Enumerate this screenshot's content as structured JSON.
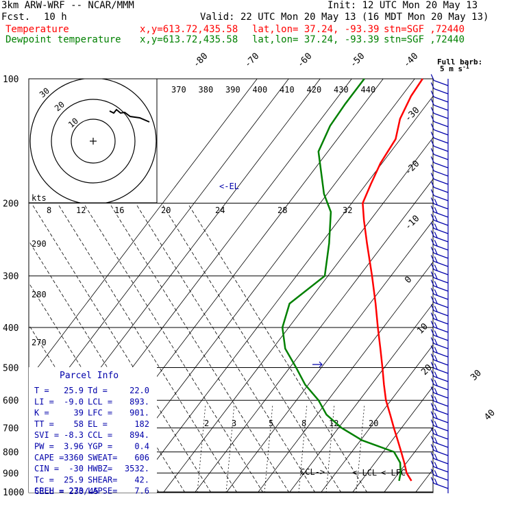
{
  "header": {
    "model": "3km ARW-WRF -- NCAR/MMM",
    "fcst_label": "Fcst.",
    "fcst_value": "10 h",
    "init": "Init: 12 UTC Mon 20 May 13",
    "valid": "Valid: 22 UTC Mon 20 May 13 (16 MDT Mon 20 May 13)",
    "temperature_label": "Temperature",
    "dewpoint_label": "Dewpoint temperature",
    "xy": "x,y=613.72,435.58",
    "latlon": "lat,lon= 37.24, -93.39",
    "station": "stn=SGF ,72440"
  },
  "colors": {
    "temperature": "#ff0000",
    "dewpoint": "#008000",
    "wind_barbs": "#0000aa",
    "text": "#000000"
  },
  "chart_data": {
    "type": "line",
    "subtype": "skew-T log-P sounding",
    "pressure_axis": {
      "scale": "log",
      "range": [
        1000,
        100
      ],
      "tick_labels": [
        "100",
        "200",
        "300",
        "400",
        "500",
        "600",
        "700",
        "800",
        "900",
        "1000"
      ]
    },
    "temperature_isotherm_labels": [
      "-80",
      "-70",
      "-60",
      "-50",
      "-40",
      "-30",
      "-20",
      "-10",
      "0",
      "10",
      "20",
      "30",
      "40"
    ],
    "theta_e_labels": [
      "370",
      "380",
      "390",
      "400",
      "410",
      "420",
      "430",
      "440"
    ],
    "theta_labels": [
      "290",
      "280",
      "270"
    ],
    "mixing_ratio_labels": [
      "2",
      "3",
      "5",
      "8",
      "12",
      "20"
    ],
    "series": [
      {
        "name": "Temperature",
        "color": "#ff0000",
        "points": [
          {
            "p": 940,
            "t": 25.9
          },
          {
            "p": 900,
            "t": 22.5
          },
          {
            "p": 850,
            "t": 19.3
          },
          {
            "p": 800,
            "t": 15.7
          },
          {
            "p": 750,
            "t": 11.8
          },
          {
            "p": 700,
            "t": 7.6
          },
          {
            "p": 650,
            "t": 3.2
          },
          {
            "p": 600,
            "t": -1.6
          },
          {
            "p": 550,
            "t": -6.0
          },
          {
            "p": 500,
            "t": -10.6
          },
          {
            "p": 450,
            "t": -15.8
          },
          {
            "p": 400,
            "t": -21.7
          },
          {
            "p": 350,
            "t": -28.2
          },
          {
            "p": 300,
            "t": -36.0
          },
          {
            "p": 250,
            "t": -45.5
          },
          {
            "p": 220,
            "t": -52.0
          },
          {
            "p": 200,
            "t": -56.5
          },
          {
            "p": 180,
            "t": -58.5
          },
          {
            "p": 160,
            "t": -60.5
          },
          {
            "p": 140,
            "t": -61.5
          },
          {
            "p": 125,
            "t": -65.0
          },
          {
            "p": 110,
            "t": -67.0
          },
          {
            "p": 100,
            "t": -67.5
          }
        ]
      },
      {
        "name": "Dewpoint temperature",
        "color": "#008000",
        "points": [
          {
            "p": 940,
            "t": 22.0
          },
          {
            "p": 900,
            "t": 20.6
          },
          {
            "p": 850,
            "t": 18.0
          },
          {
            "p": 800,
            "t": 13.4
          },
          {
            "p": 750,
            "t": 0.5
          },
          {
            "p": 700,
            "t": -9.0
          },
          {
            "p": 650,
            "t": -17.0
          },
          {
            "p": 600,
            "t": -23.0
          },
          {
            "p": 550,
            "t": -31.0
          },
          {
            "p": 500,
            "t": -38.0
          },
          {
            "p": 450,
            "t": -46.0
          },
          {
            "p": 400,
            "t": -52.0
          },
          {
            "p": 350,
            "t": -55.5
          },
          {
            "p": 300,
            "t": -51.0
          },
          {
            "p": 250,
            "t": -57.5
          },
          {
            "p": 210,
            "t": -64.5
          },
          {
            "p": 190,
            "t": -71.0
          },
          {
            "p": 150,
            "t": -83.0
          },
          {
            "p": 130,
            "t": -85.5
          },
          {
            "p": 115,
            "t": -86.0
          },
          {
            "p": 100,
            "t": -86.0
          }
        ]
      }
    ],
    "annotations": [
      {
        "label": "EL",
        "p": 182
      },
      {
        "label": "LCL",
        "p": 893
      },
      {
        "label": "LFC",
        "p": 901
      },
      {
        "label": "CCL",
        "p": 894
      }
    ]
  },
  "hodograph": {
    "units_label": "kts",
    "speed_labels": [
      "8",
      "12",
      "16",
      "20",
      "24",
      "28",
      "32"
    ],
    "ring_labels": [
      "30",
      "20",
      "10"
    ]
  },
  "wind_legend": {
    "line1": "Full barb:",
    "line2": "5 m s",
    "unit_exp": "-1"
  },
  "parcel_info": {
    "title": "Parcel Info",
    "rows": [
      [
        "T  =",
        "25.9",
        "Td =",
        "22.0"
      ],
      [
        "LI =",
        "-9.0",
        "LCL =",
        "893."
      ],
      [
        "K  =",
        "39",
        "LFC =",
        "901."
      ],
      [
        "TT =",
        "58",
        "EL =",
        "182"
      ],
      [
        "SVI =",
        "-8.3",
        "CCL =",
        "894."
      ],
      [
        "PW =",
        "3.96",
        "YGP =",
        "0.4"
      ],
      [
        "CAPE =",
        "3360",
        "SWEAT=",
        "606"
      ],
      [
        "CIN =",
        "-30",
        "HWBZ=",
        "3532."
      ],
      [
        "Tc =",
        "25.9",
        "SHEAR=",
        "42."
      ],
      [
        "SREH =",
        "273",
        "LAPSE=",
        "7.6"
      ]
    ],
    "cell": "CELL = 230/45"
  }
}
